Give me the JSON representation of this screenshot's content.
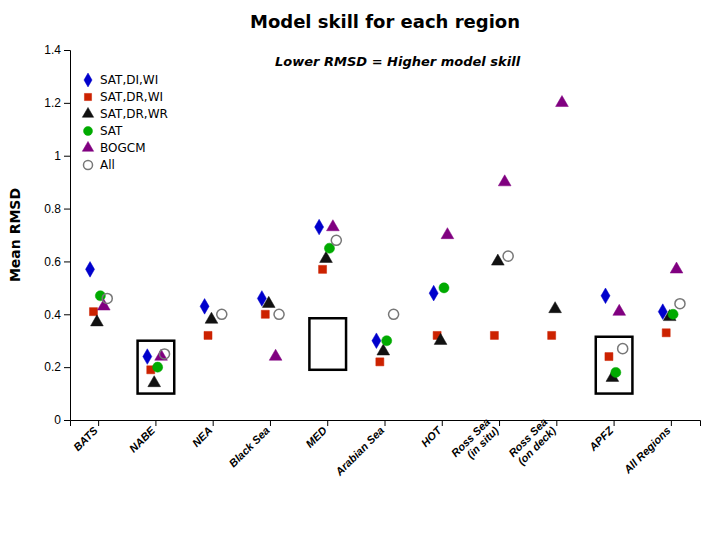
{
  "chart_data": {
    "type": "scatter",
    "title": "Model skill for each region",
    "subtitle": "Lower RMSD = Higher model skill",
    "ylabel": "Mean RMSD",
    "ylim": [
      0,
      1.4
    ],
    "yticks": [
      0,
      0.2,
      0.4,
      0.6,
      0.8,
      1,
      1.2,
      1.4
    ],
    "grid": false,
    "legend": "upper left",
    "categories": [
      "BATS",
      "NABE",
      "NEA",
      "Black Sea",
      "MED",
      "Arabian Sea",
      "HOT",
      "Ross Sea\n(in situ)",
      "Ross Sea\n(on deck)",
      "APFZ",
      "All Regions"
    ],
    "series": [
      {
        "name": "SAT,DI,WI",
        "color": "#0000cc",
        "marker": "diamond",
        "values": [
          0.57,
          0.24,
          0.43,
          0.46,
          0.73,
          0.3,
          0.48,
          null,
          null,
          0.47,
          0.41
        ]
      },
      {
        "name": "SAT,DR,WI",
        "color": "#cc2200",
        "marker": "square",
        "values": [
          0.41,
          0.19,
          0.32,
          0.4,
          0.57,
          0.22,
          0.32,
          0.32,
          0.32,
          0.24,
          0.33
        ]
      },
      {
        "name": "SAT,DR,WR",
        "color": "#111111",
        "marker": "triangle",
        "values": [
          0.37,
          0.14,
          0.38,
          0.44,
          0.61,
          0.26,
          0.3,
          0.6,
          0.42,
          0.16,
          0.39
        ]
      },
      {
        "name": "SAT",
        "color": "#00aa00",
        "marker": "circle",
        "values": [
          0.47,
          0.2,
          null,
          null,
          0.65,
          0.3,
          0.5,
          null,
          null,
          0.18,
          0.4
        ]
      },
      {
        "name": "BOGCM",
        "color": "#800080",
        "marker": "triangle",
        "values": [
          0.43,
          0.24,
          null,
          0.24,
          0.73,
          null,
          0.7,
          0.9,
          1.2,
          0.41,
          0.57
        ]
      },
      {
        "name": "All",
        "color": "#777777",
        "marker": "circle-open",
        "values": [
          0.46,
          0.25,
          0.4,
          0.4,
          0.68,
          0.4,
          null,
          0.62,
          null,
          0.27,
          0.44
        ]
      }
    ],
    "boxes": [
      {
        "category": "NABE",
        "ylim": [
          0.1,
          0.3
        ]
      },
      {
        "category": "MED",
        "ylim": [
          0.19,
          0.385
        ]
      },
      {
        "category": "APFZ",
        "ylim": [
          0.1,
          0.315
        ]
      }
    ]
  }
}
